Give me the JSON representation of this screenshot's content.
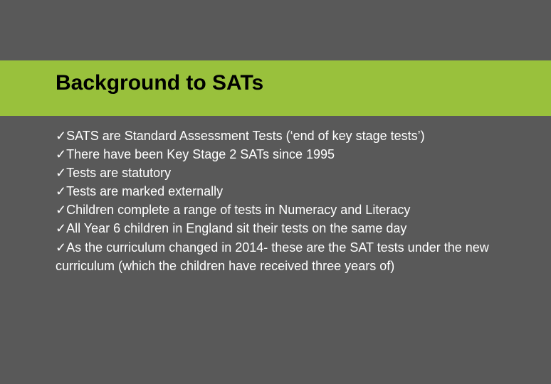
{
  "slide": {
    "background_color": "#595959",
    "accent_color": "#99c13c",
    "title_color": "#000000",
    "text_color": "#ffffff",
    "title_fontsize": 30,
    "body_fontsize": 18,
    "title": "Background to SATs",
    "check_glyph": "✓",
    "bullets": [
      "SATS are Standard Assessment Tests (‘end of key stage tests’)",
      "There have been Key Stage 2 SATs since 1995",
      "Tests are statutory",
      "Tests are marked externally",
      "Children complete a range of tests in Numeracy and Literacy",
      "All Year 6 children in England sit their tests on the same day",
      "As the curriculum changed in 2014- these are the SAT tests under the new curriculum (which the children have received three years of)"
    ]
  }
}
